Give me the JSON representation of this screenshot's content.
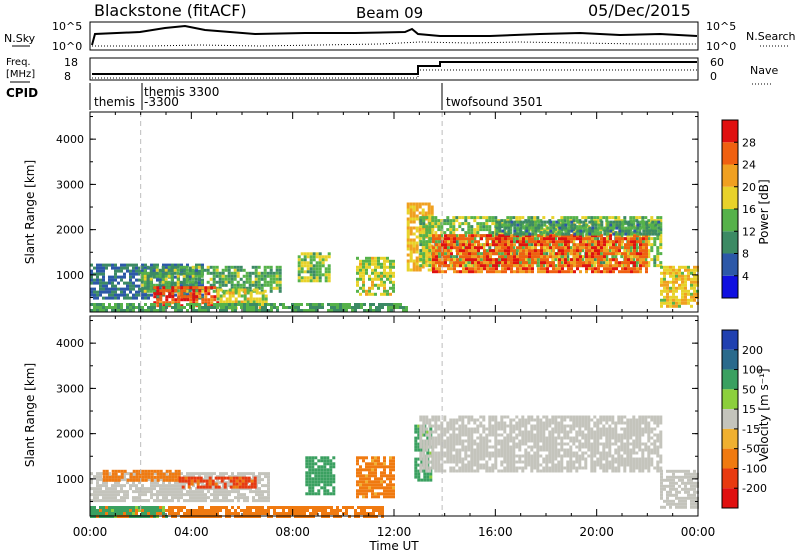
{
  "header": {
    "station": "Blackstone (fitACF)",
    "beam": "Beam 09",
    "date": "05/Dec/2015"
  },
  "top_panel": {
    "left_label_1": "N.Sky",
    "left_tick_hi": "10^5",
    "left_tick_lo": "10^0",
    "right_label_1": "N.Search",
    "right_tick_hi": "10^5",
    "right_tick_lo": "10^0",
    "left_label_2a": "Freq.",
    "left_label_2b": "[MHz]",
    "freq_tick_hi": "18",
    "freq_tick_lo": "8",
    "right_label_2": "Nave",
    "nave_tick_hi": "60",
    "nave_tick_lo": "0",
    "cpid_label": "CPID",
    "cpid_entries": [
      "themis",
      "themis 3300",
      "-3300",
      "twofsound 3501"
    ]
  },
  "axes": {
    "x_label": "Time UT",
    "x_ticks": [
      "00:00",
      "04:00",
      "08:00",
      "12:00",
      "16:00",
      "20:00",
      "00:00"
    ],
    "y_label": "Slant Range [km]",
    "y_ticks": [
      "1000",
      "2000",
      "3000",
      "4000"
    ]
  },
  "colorbars": {
    "power": {
      "label": "Power [dB]",
      "ticks": [
        "4",
        "8",
        "12",
        "16",
        "20",
        "24",
        "28"
      ],
      "colors": [
        "#1010e0",
        "#2c58a8",
        "#3c8a64",
        "#56b24a",
        "#e8d22a",
        "#f0a020",
        "#f06010",
        "#e01010"
      ]
    },
    "velocity": {
      "label": "Velocity [m s⁻¹]",
      "ticks": [
        "200",
        "100",
        "50",
        "15",
        "-15",
        "-50",
        "-100",
        "-200"
      ],
      "colors": [
        "#2040b0",
        "#2a6a8c",
        "#3aa060",
        "#8ccf3c",
        "#c4c4bc",
        "#f0b030",
        "#f07a10",
        "#e83a10",
        "#e01010"
      ]
    }
  },
  "chart_data": [
    {
      "type": "heatmap",
      "title": "Power",
      "xlabel": "Time UT",
      "ylabel": "Slant Range [km]",
      "xlim": [
        0,
        24
      ],
      "ylim": [
        180,
        4600
      ],
      "colorbar": "Power [dB]",
      "clim": [
        0,
        32
      ],
      "regions": [
        {
          "t0": 0.0,
          "t1": 4.5,
          "r0": 500,
          "r1": 1250,
          "v": 8
        },
        {
          "t0": 2.0,
          "t1": 7.5,
          "r0": 650,
          "r1": 1200,
          "v": 13
        },
        {
          "t0": 2.5,
          "t1": 5.0,
          "r0": 300,
          "r1": 750,
          "v": 27
        },
        {
          "t0": 5.0,
          "t1": 7.0,
          "r0": 300,
          "r1": 700,
          "v": 17
        },
        {
          "t0": 0.0,
          "t1": 12.5,
          "r0": 200,
          "r1": 380,
          "v": 12
        },
        {
          "t0": 8.2,
          "t1": 9.5,
          "r0": 900,
          "r1": 1500,
          "v": 15
        },
        {
          "t0": 10.5,
          "t1": 12.0,
          "r0": 600,
          "r1": 1400,
          "v": 17
        },
        {
          "t0": 12.5,
          "t1": 13.5,
          "r0": 1100,
          "r1": 2600,
          "v": 20
        },
        {
          "t0": 13.0,
          "t1": 22.5,
          "r0": 1200,
          "r1": 2300,
          "v": 15
        },
        {
          "t0": 13.5,
          "t1": 22.0,
          "r0": 1100,
          "r1": 1900,
          "v": 26
        },
        {
          "t0": 16.0,
          "t1": 22.5,
          "r0": 1900,
          "r1": 2200,
          "v": 11
        },
        {
          "t0": 22.5,
          "t1": 24.0,
          "r0": 300,
          "r1": 1200,
          "v": 19
        }
      ]
    },
    {
      "type": "heatmap",
      "title": "Velocity",
      "xlabel": "Time UT",
      "ylabel": "Slant Range [km]",
      "xlim": [
        0,
        24
      ],
      "ylim": [
        180,
        4600
      ],
      "colorbar": "Velocity [m s⁻¹]",
      "regions": [
        {
          "t0": 0.0,
          "t1": 7.0,
          "r0": 500,
          "r1": 1150,
          "v": 0
        },
        {
          "t0": 0.5,
          "t1": 3.5,
          "r0": 950,
          "r1": 1200,
          "v": -60
        },
        {
          "t0": 3.5,
          "t1": 6.5,
          "r0": 800,
          "r1": 1050,
          "v": -80
        },
        {
          "t0": 0.0,
          "t1": 11.5,
          "r0": 200,
          "r1": 400,
          "v": -60
        },
        {
          "t0": 0.0,
          "t1": 3.0,
          "r0": 200,
          "r1": 400,
          "v": 40
        },
        {
          "t0": 8.5,
          "t1": 9.6,
          "r0": 700,
          "r1": 1500,
          "v": 45
        },
        {
          "t0": 10.5,
          "t1": 12.0,
          "r0": 600,
          "r1": 1500,
          "v": -40
        },
        {
          "t0": 12.8,
          "t1": 13.4,
          "r0": 1000,
          "r1": 2200,
          "v": 40
        },
        {
          "t0": 13.0,
          "t1": 22.5,
          "r0": 1200,
          "r1": 2400,
          "v": 0
        },
        {
          "t0": 22.5,
          "t1": 24.0,
          "r0": 400,
          "r1": 1200,
          "v": 0
        }
      ]
    }
  ]
}
